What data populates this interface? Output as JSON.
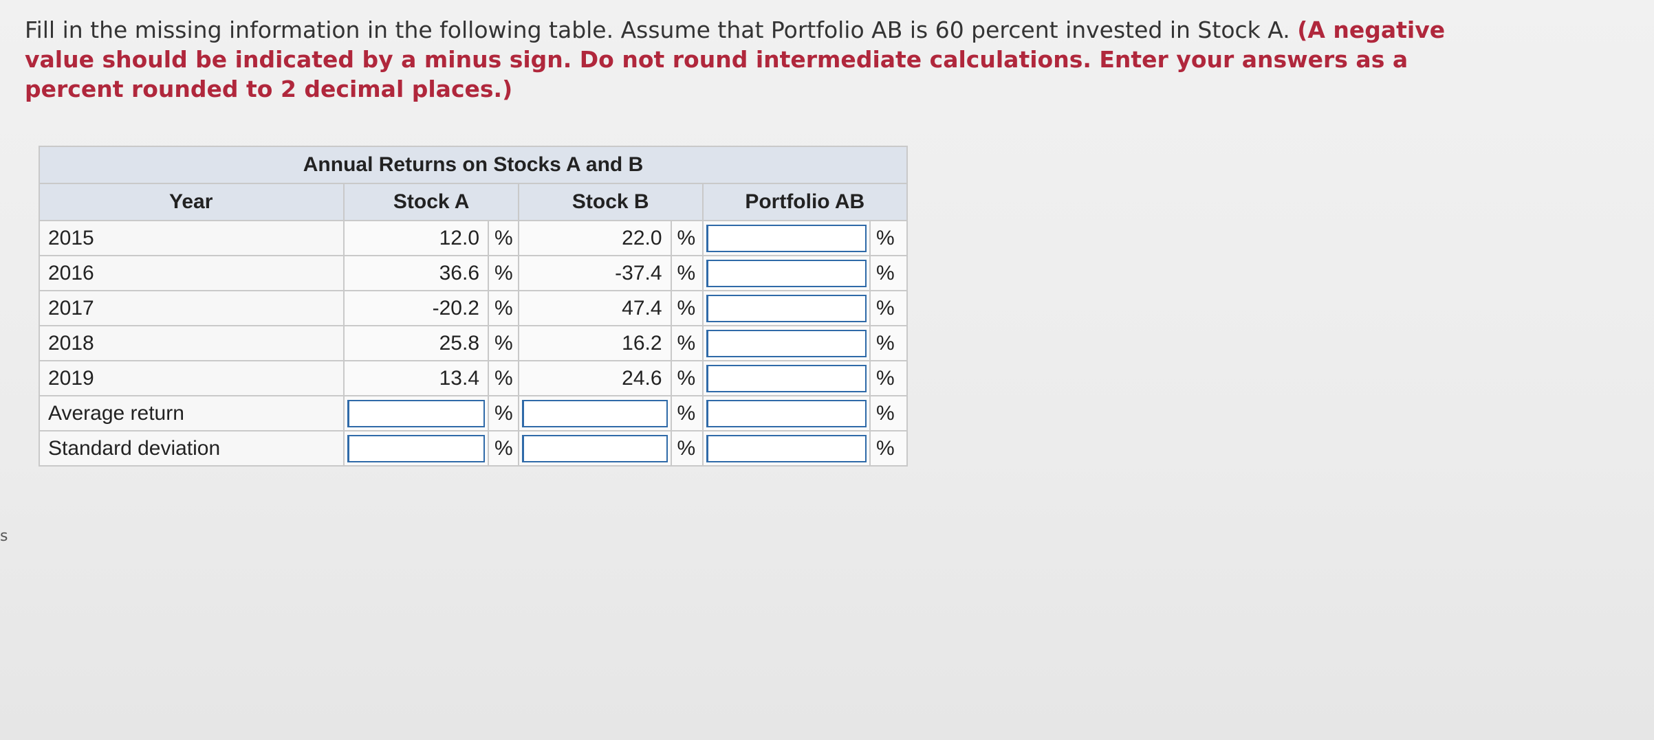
{
  "instructions": {
    "plain": "Fill in the missing information in the following table. Assume that Portfolio AB is 60 percent invested in Stock A. ",
    "emphasis": "(A negative value should be indicated by a minus sign. Do not round intermediate calculations. Enter your answers as a percent rounded to 2 decimal places.)"
  },
  "table": {
    "title": "Annual Returns on Stocks A and B",
    "headers": {
      "year": "Year",
      "stock_a": "Stock A",
      "stock_b": "Stock B",
      "portfolio": "Portfolio AB"
    },
    "percent_symbol": "%",
    "rows": [
      {
        "year": "2015",
        "stock_a": "12.0",
        "stock_b": "22.0",
        "portfolio": ""
      },
      {
        "year": "2016",
        "stock_a": "36.6",
        "stock_b": "-37.4",
        "portfolio": ""
      },
      {
        "year": "2017",
        "stock_a": "-20.2",
        "stock_b": "47.4",
        "portfolio": ""
      },
      {
        "year": "2018",
        "stock_a": "25.8",
        "stock_b": "16.2",
        "portfolio": ""
      },
      {
        "year": "2019",
        "stock_a": "13.4",
        "stock_b": "24.6",
        "portfolio": ""
      }
    ],
    "summary_rows": [
      {
        "label": "Average return",
        "stock_a": "",
        "stock_b": "",
        "portfolio": ""
      },
      {
        "label": "Standard deviation",
        "stock_a": "",
        "stock_b": "",
        "portfolio": ""
      }
    ]
  },
  "side_mark": "s",
  "colors": {
    "emphasis_text": "#b0273c",
    "header_bg": "#dde3ec",
    "input_border": "#2f6aa8"
  }
}
